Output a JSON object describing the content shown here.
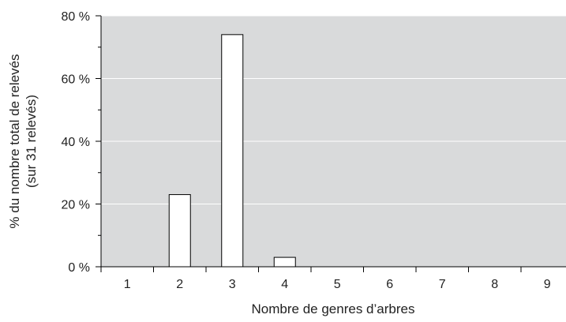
{
  "chart_data": {
    "type": "bar",
    "categories": [
      "1",
      "2",
      "3",
      "4",
      "5",
      "6",
      "7",
      "8",
      "9"
    ],
    "values": [
      0,
      23,
      74,
      3,
      0,
      0,
      0,
      0,
      0
    ],
    "ylim": [
      0,
      80
    ],
    "y_ticks": [
      0,
      20,
      40,
      60,
      80
    ],
    "y_tick_labels": [
      "0 %",
      "20 %",
      "40 %",
      "60 %",
      "80 %"
    ],
    "xlabel": "Nombre de genres d’arbres",
    "ylabel_line1": "% du nombre total de relevés",
    "ylabel_line2": "(sur 31 relevés)",
    "grid": true,
    "legend": "none",
    "colors": {
      "plot_background": "#d9dadb",
      "bar_fill": "#ffffff",
      "bar_stroke": "#000000",
      "gridline": "#ffffff",
      "axis": "#000000"
    }
  }
}
